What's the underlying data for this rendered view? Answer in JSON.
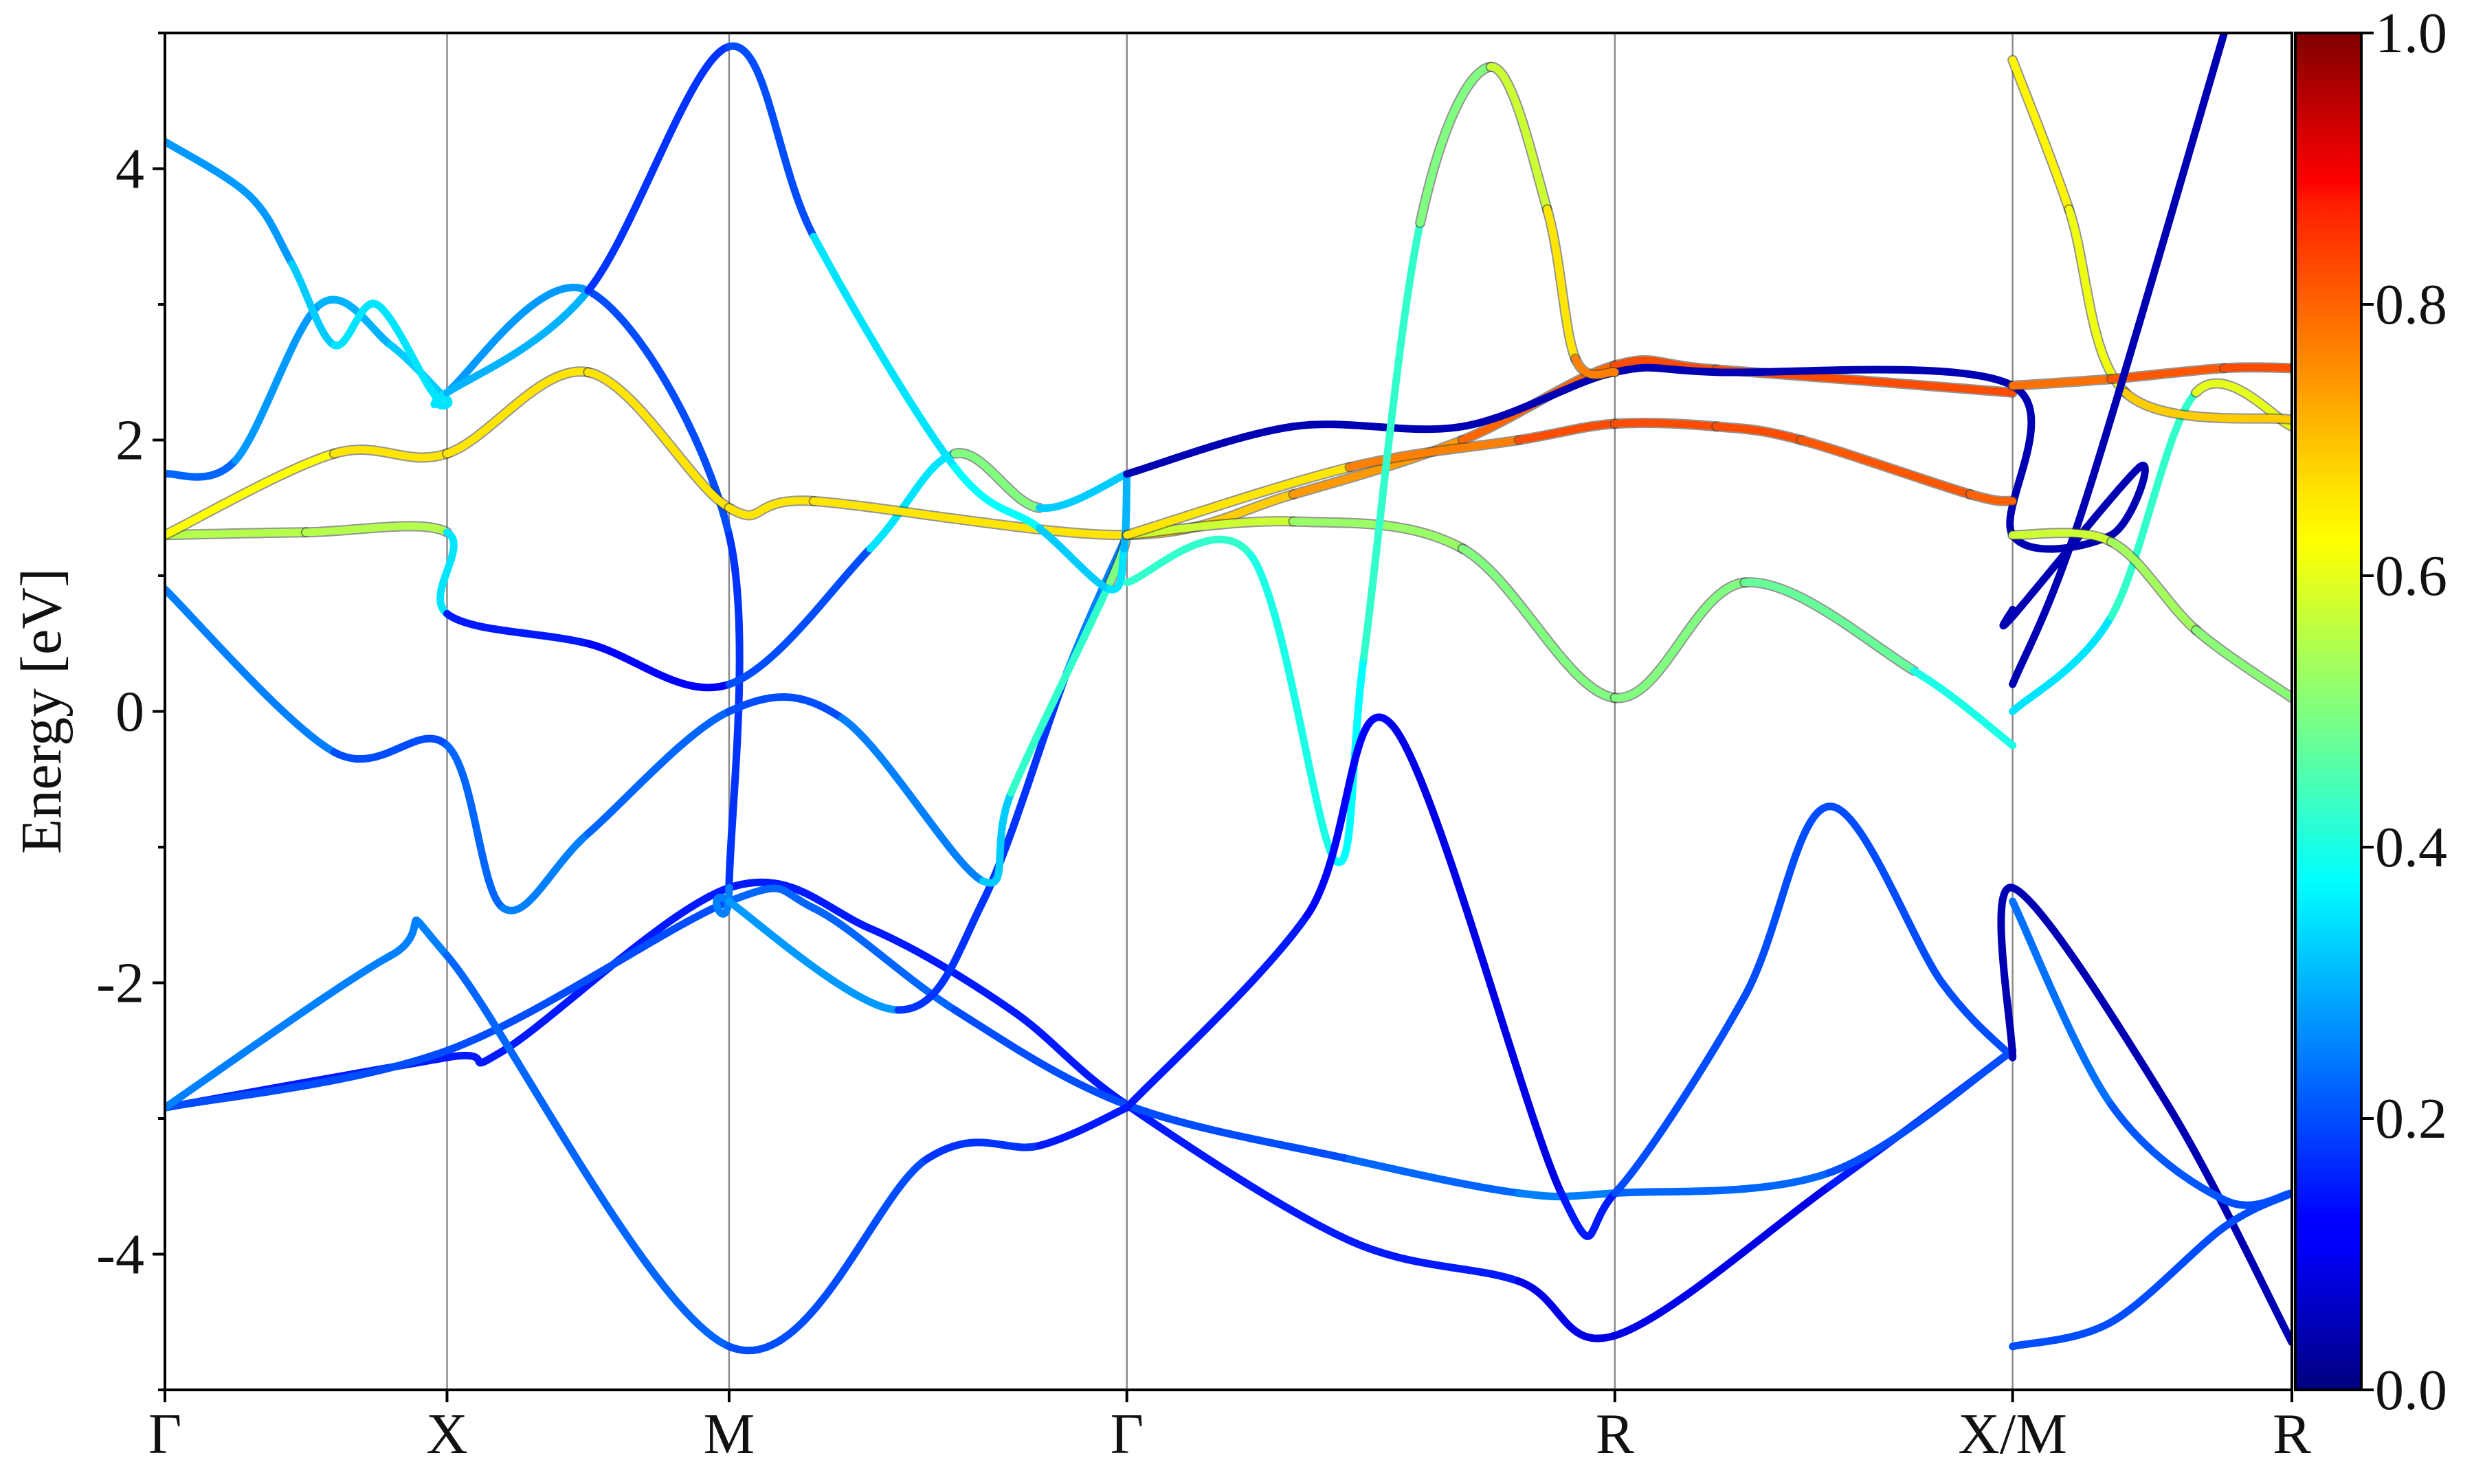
{
  "chart_data": {
    "type": "line",
    "ylabel": "Energy [eV]",
    "ylim": [
      -5,
      5
    ],
    "yticks": [
      -4,
      -2,
      0,
      2,
      4
    ],
    "xlim": [
      0,
      7.54
    ],
    "kpoints": [
      {
        "label": "Γ",
        "x": 0
      },
      {
        "label": "X",
        "x": 1
      },
      {
        "label": "M",
        "x": 2
      },
      {
        "label": "Γ",
        "x": 3.41
      },
      {
        "label": "R",
        "x": 5.14
      },
      {
        "label": "X/M",
        "x": 6.55
      },
      {
        "label": "R",
        "x": 7.54
      }
    ],
    "colorbar": {
      "colormap": "jet",
      "range": [
        0.0,
        1.0
      ],
      "ticks": [
        "0.0",
        "0.2",
        "0.4",
        "0.6",
        "0.8",
        "1.0"
      ]
    },
    "series": [
      {
        "values": [
          -2.92,
          -2.55,
          -2.5,
          -1.3,
          -1.6,
          -2.2,
          -2.9,
          -3.9,
          -4.2,
          -4.6,
          -3.5,
          -2.5
        ],
        "weights": [
          0.15,
          0.15,
          0.15,
          0.15,
          0.15,
          0.15,
          0.15,
          0.15,
          0.15,
          0.05,
          0.15,
          0.15
        ],
        "x": [
          0,
          1.0,
          1.2,
          2.0,
          2.5,
          3.0,
          3.41,
          4.2,
          4.8,
          5.14,
          5.9,
          6.55
        ]
      },
      {
        "values": [
          -2.92,
          -2.5,
          -1.4,
          -1.45,
          -2.2,
          -2.9,
          -3.3,
          -3.55,
          -3.55,
          -3.4,
          -2.5
        ],
        "weights": [
          0.2,
          0.2,
          0.2,
          0.25,
          0.2,
          0.2,
          0.2,
          0.25,
          0.25,
          0.2,
          0.2
        ],
        "x": [
          0,
          1.0,
          2.0,
          2.3,
          2.8,
          3.41,
          4.2,
          4.8,
          5.14,
          5.9,
          6.55
        ]
      },
      {
        "values": [
          -2.92,
          -1.8,
          -1.8,
          -4.68,
          -3.3,
          -3.2,
          -2.92
        ],
        "weights": [
          0.25,
          0.25,
          0.25,
          0.2,
          0.2,
          0.15,
          0.15
        ],
        "x": [
          0,
          0.8,
          1.0,
          2.0,
          2.7,
          3.1,
          3.41
        ]
      },
      {
        "values": [
          1.75,
          1.85,
          3.0,
          2.7,
          2.3,
          2.35,
          3.1,
          1.3,
          -1.3,
          -1.4,
          -2.2,
          -1.4,
          0.3,
          1.3
        ],
        "weights": [
          0.2,
          0.25,
          0.3,
          0.3,
          0.35,
          0.35,
          0.2,
          0.2,
          0.15,
          0.35,
          0.2,
          0.15,
          0.2,
          0.3
        ],
        "x": [
          0,
          0.25,
          0.55,
          0.8,
          1.0,
          1.0,
          1.5,
          2.0,
          2.0,
          2.0,
          2.6,
          2.9,
          3.2,
          3.41
        ]
      },
      {
        "values": [
          0.9,
          -0.3,
          -0.25,
          -1.45,
          -0.9,
          0.0,
          -0.05,
          -1.25,
          -0.6,
          0.95,
          1.3
        ],
        "weights": [
          0.3,
          0.2,
          0.2,
          0.25,
          0.25,
          0.2,
          0.2,
          0.3,
          0.35,
          0.5,
          0.5
        ],
        "x": [
          0,
          0.6,
          1.0,
          1.2,
          1.5,
          2.0,
          2.4,
          2.9,
          3.0,
          3.35,
          3.41
        ]
      },
      {
        "values": [
          1.3,
          1.32,
          1.32,
          0.72,
          0.5,
          0.2,
          1.2,
          1.9,
          1.5,
          1.75
        ],
        "weights": [
          0.55,
          0.55,
          0.55,
          0.15,
          0.15,
          0.1,
          0.3,
          0.4,
          0.6,
          0.05
        ],
        "x": [
          0,
          0.5,
          1.0,
          1.0,
          1.5,
          2.0,
          2.5,
          2.8,
          3.1,
          3.41
        ]
      },
      {
        "values": [
          1.3,
          1.9,
          1.9,
          2.5,
          1.5,
          1.55,
          1.3,
          1.6,
          2.0,
          2.55,
          2.52,
          2.35
        ],
        "weights": [
          0.6,
          0.65,
          0.65,
          0.65,
          0.65,
          0.65,
          0.65,
          0.7,
          0.75,
          0.8,
          0.8,
          0.8
        ],
        "x": [
          0,
          0.6,
          1.0,
          1.5,
          2.0,
          2.3,
          3.41,
          4.0,
          4.6,
          5.14,
          5.5,
          6.55
        ]
      },
      {
        "values": [
          4.2,
          3.8,
          3.3,
          2.7,
          3.0,
          2.35,
          2.35,
          3.1,
          4.9,
          3.5,
          1.8,
          1.35,
          0.9,
          1.2,
          1.75
        ],
        "weights": [
          0.3,
          0.25,
          0.3,
          0.35,
          0.35,
          0.35,
          0.35,
          0.25,
          0.1,
          0.3,
          0.4,
          0.35,
          0.3,
          0.4,
          0.2
        ],
        "x": [
          0,
          0.3,
          0.45,
          0.6,
          0.75,
          0.95,
          1.0,
          1.5,
          2.0,
          2.3,
          2.8,
          3.1,
          3.35,
          3.4,
          3.41
        ]
      },
      {
        "values": [
          1.75,
          2.1,
          2.1,
          2.5,
          2.5,
          2.4,
          1.3,
          1.3,
          1.8,
          0.7,
          0.75
        ],
        "weights": [
          0.05,
          0.05,
          0.05,
          0.05,
          0.05,
          0.05,
          0.05,
          0.05,
          0.05,
          0.05,
          0.05
        ],
        "x": [
          3.41,
          4.0,
          4.6,
          5.14,
          5.5,
          6.55,
          6.55,
          6.9,
          7.0,
          6.55,
          6.55
        ]
      },
      {
        "values": [
          1.3,
          1.4,
          1.2,
          0.1,
          0.95,
          0.3,
          -0.25
        ],
        "weights": [
          0.6,
          0.55,
          0.5,
          0.5,
          0.5,
          0.45,
          0.35
        ],
        "x": [
          3.41,
          4.0,
          4.6,
          5.14,
          5.6,
          6.2,
          6.55
        ]
      },
      {
        "values": [
          1.3,
          1.8,
          2.0,
          2.12,
          2.1,
          2.0,
          1.6,
          1.55
        ],
        "weights": [
          0.6,
          0.7,
          0.8,
          0.8,
          0.8,
          0.8,
          0.78,
          0.78
        ],
        "x": [
          3.41,
          4.2,
          4.8,
          5.14,
          5.5,
          5.8,
          6.4,
          6.55
        ]
      },
      {
        "values": [
          0.95,
          1.15,
          -1.1,
          0.4,
          3.6,
          4.75,
          3.7,
          2.6,
          2.5
        ],
        "weights": [
          0.4,
          0.45,
          0.35,
          0.4,
          0.45,
          0.55,
          0.6,
          0.7,
          0.8
        ],
        "x": [
          3.41,
          3.85,
          4.15,
          4.25,
          4.45,
          4.7,
          4.9,
          5.0,
          5.14
        ]
      },
      {
        "values": [
          -2.92,
          -1.5,
          -0.1,
          -3.55,
          -3.55,
          -2.1,
          -0.7,
          -2.0,
          -2.55
        ],
        "weights": [
          0.15,
          0.15,
          0.1,
          0.1,
          0.2,
          0.2,
          0.2,
          0.2,
          0.2
        ],
        "x": [
          3.41,
          4.05,
          4.35,
          4.95,
          5.14,
          5.6,
          5.9,
          6.3,
          6.55
        ]
      },
      {
        "values": [
          -2.55,
          -1.3,
          -2.9,
          -4.65
        ],
        "weights": [
          0.05,
          0.05,
          0.05,
          0.05
        ],
        "x": [
          6.55,
          6.55,
          7.1,
          7.54
        ]
      },
      {
        "values": [
          -4.68,
          -4.5,
          -3.8,
          -3.55
        ],
        "weights": [
          0.2,
          0.2,
          0.2,
          0.2
        ],
        "x": [
          6.55,
          6.9,
          7.3,
          7.54
        ]
      },
      {
        "values": [
          0.0,
          0.7,
          2.35,
          2.1
        ],
        "weights": [
          0.3,
          0.4,
          0.45,
          0.75
        ],
        "x": [
          6.55,
          6.9,
          7.2,
          7.54
        ]
      },
      {
        "values": [
          4.8,
          3.7,
          2.35,
          2.15
        ],
        "weights": [
          0.65,
          0.62,
          0.6,
          0.75
        ],
        "x": [
          6.55,
          6.75,
          6.95,
          7.54
        ]
      },
      {
        "values": [
          2.4,
          2.45,
          2.53,
          2.53
        ],
        "weights": [
          0.75,
          0.78,
          0.8,
          0.8
        ],
        "x": [
          6.55,
          6.9,
          7.3,
          7.54
        ]
      },
      {
        "values": [
          0.2,
          1.5,
          5.0
        ],
        "weights": [
          0.05,
          0.05,
          0.05
        ],
        "x": [
          6.55,
          6.8,
          7.3
        ]
      },
      {
        "values": [
          1.3,
          1.25,
          0.6,
          0.1
        ],
        "weights": [
          0.6,
          0.55,
          0.52,
          0.5
        ],
        "x": [
          6.55,
          6.9,
          7.2,
          7.54
        ]
      },
      {
        "values": [
          -1.4,
          -2.9,
          -3.6,
          -3.55
        ],
        "weights": [
          0.25,
          0.22,
          0.2,
          0.2
        ],
        "x": [
          6.55,
          6.9,
          7.3,
          7.54
        ]
      }
    ]
  }
}
